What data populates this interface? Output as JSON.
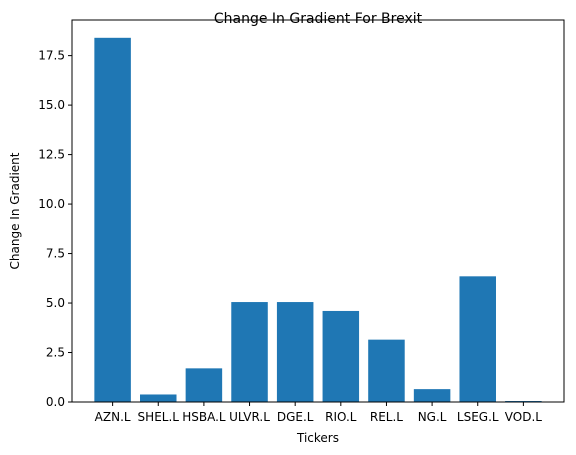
{
  "chart_data": {
    "type": "bar",
    "title": "Change In Gradient For Brexit",
    "xlabel": "Tickers",
    "ylabel": "Change In Gradient",
    "categories": [
      "AZN.L",
      "SHEL.L",
      "HSBA.L",
      "ULVR.L",
      "DGE.L",
      "RIO.L",
      "REL.L",
      "NG.L",
      "LSEG.L",
      "VOD.L"
    ],
    "values": [
      18.4,
      0.38,
      1.7,
      5.05,
      5.05,
      4.6,
      3.15,
      0.65,
      6.35,
      0.05
    ],
    "ylim": [
      0,
      19.3
    ],
    "yticks": [
      0.0,
      2.5,
      5.0,
      7.5,
      10.0,
      12.5,
      15.0,
      17.5
    ],
    "ytick_labels": [
      "0.0",
      "2.5",
      "5.0",
      "7.5",
      "10.0",
      "12.5",
      "15.0",
      "17.5"
    ],
    "bar_color": "#1f77b4",
    "grid": false,
    "legend": "none"
  }
}
